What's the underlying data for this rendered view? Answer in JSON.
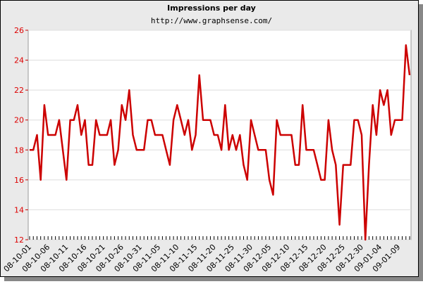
{
  "chart_data": {
    "type": "line",
    "title": "Impressions per day",
    "subtitle": "http://www.graphsense.com/",
    "categories": [
      "08-10-01",
      null,
      null,
      null,
      null,
      "08-10-06",
      null,
      null,
      null,
      null,
      "08-10-11",
      null,
      null,
      null,
      null,
      "08-10-16",
      null,
      null,
      null,
      null,
      "08-10-21",
      null,
      null,
      null,
      null,
      "08-10-26",
      null,
      null,
      null,
      null,
      "08-10-31",
      null,
      null,
      null,
      null,
      "08-11-05",
      null,
      null,
      null,
      null,
      "08-11-10",
      null,
      null,
      null,
      null,
      "08-11-15",
      null,
      null,
      null,
      null,
      "08-11-20",
      null,
      null,
      null,
      null,
      "08-11-25",
      null,
      null,
      null,
      null,
      "08-11-30",
      null,
      null,
      null,
      null,
      "08-12-05",
      null,
      null,
      null,
      null,
      "08-12-10",
      null,
      null,
      null,
      null,
      "08-12-15",
      null,
      null,
      null,
      null,
      "08-12-20",
      null,
      null,
      null,
      null,
      "08-12-25",
      null,
      null,
      null,
      null,
      "08-12-30",
      null,
      null,
      null,
      null,
      "09-01-04",
      null,
      null,
      null,
      null,
      "09-01-09",
      null,
      null,
      null
    ],
    "values": [
      18,
      18,
      19,
      16,
      21,
      19,
      19,
      19,
      20,
      18,
      16,
      20,
      20,
      21,
      19,
      20,
      17,
      17,
      20,
      19,
      19,
      19,
      20,
      17,
      18,
      21,
      20,
      22,
      19,
      18,
      18,
      18,
      20,
      20,
      19,
      19,
      19,
      18,
      17,
      20,
      21,
      20,
      19,
      20,
      18,
      19,
      23,
      20,
      20,
      20,
      19,
      19,
      18,
      21,
      18,
      19,
      18,
      19,
      17,
      16,
      20,
      19,
      18,
      18,
      18,
      16,
      15,
      20,
      19,
      19,
      19,
      19,
      17,
      17,
      21,
      18,
      18,
      18,
      17,
      16,
      16,
      20,
      18,
      17,
      13,
      17,
      17,
      17,
      20,
      20,
      19,
      12,
      17,
      21,
      19,
      22,
      21,
      22,
      19,
      20,
      20,
      20,
      25,
      23
    ],
    "color": "#cc0000",
    "ylim": [
      12,
      26
    ],
    "yticks": [
      12,
      14,
      16,
      18,
      20,
      22,
      24,
      26
    ],
    "grid": true
  }
}
